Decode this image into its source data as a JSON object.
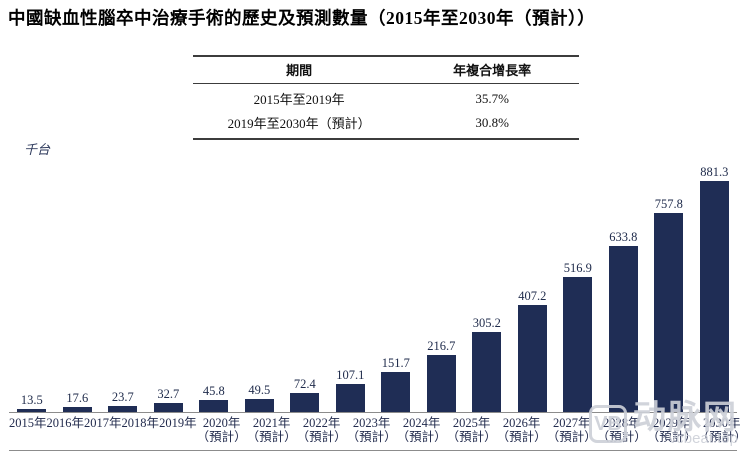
{
  "title": "中國缺血性腦卒中治療手術的歷史及預測數量（2015年至2030年（預計））",
  "table": {
    "headers": [
      "期間",
      "年複合增長率"
    ],
    "rows": [
      [
        "2015年至2019年",
        "35.7%"
      ],
      [
        "2019年至2030年（預計）",
        "30.8%"
      ]
    ]
  },
  "chart_data": {
    "type": "bar",
    "title": "中國缺血性腦卒中治療手術的歷史及預測數量（2015年至2030年（預計））",
    "unit_label": "千台",
    "ylabel": "千台",
    "xlabel": "",
    "ylim": [
      0,
      900
    ],
    "grid": false,
    "bar_color": "#1f2d55",
    "categories": [
      {
        "year": "2015年",
        "note": ""
      },
      {
        "year": "2016年",
        "note": ""
      },
      {
        "year": "2017年",
        "note": ""
      },
      {
        "year": "2018年",
        "note": ""
      },
      {
        "year": "2019年",
        "note": ""
      },
      {
        "year": "2020年",
        "note": "（預計）"
      },
      {
        "year": "2021年",
        "note": "（預計）"
      },
      {
        "year": "2022年",
        "note": "（預計）"
      },
      {
        "year": "2023年",
        "note": "（預計）"
      },
      {
        "year": "2024年",
        "note": "（預計）"
      },
      {
        "year": "2025年",
        "note": "（預計）"
      },
      {
        "year": "2026年",
        "note": "（預計）"
      },
      {
        "year": "2027年",
        "note": "（預計）"
      },
      {
        "year": "2028年",
        "note": "（預計）"
      },
      {
        "year": "2029年",
        "note": "（預計）"
      },
      {
        "year": "2030年",
        "note": "（預計）"
      }
    ],
    "values": [
      13.5,
      17.6,
      23.7,
      32.7,
      45.8,
      49.5,
      72.4,
      107.1,
      151.7,
      216.7,
      305.2,
      407.2,
      516.9,
      633.8,
      757.8,
      881.3
    ]
  },
  "watermark": {
    "logo": "VB",
    "name": "动脉网",
    "site": "vcbeat.top"
  }
}
